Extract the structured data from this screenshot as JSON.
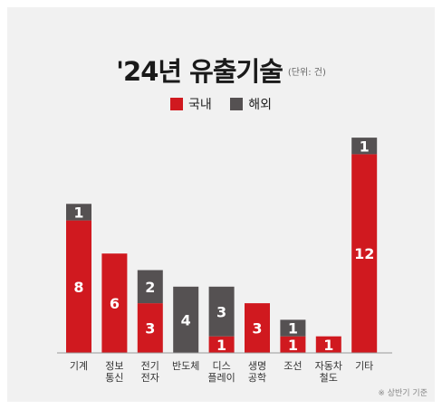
{
  "header": {
    "title": "'24년 유출기술",
    "unit": "(단위: 건)"
  },
  "legend": {
    "domestic_label": "국내",
    "overseas_label": "해외"
  },
  "colors": {
    "domestic": "#d0191f",
    "overseas": "#555152",
    "background": "#f1f1f1"
  },
  "footnote": "※ 상반기 기준",
  "chart_data": {
    "type": "bar",
    "stacked": true,
    "title": "'24년 유출기술",
    "unit": "(단위: 건)",
    "categories": [
      [
        "기계"
      ],
      [
        "정보",
        "통신"
      ],
      [
        "전기",
        "전자"
      ],
      [
        "반도체"
      ],
      [
        "디스",
        "플레이"
      ],
      [
        "생명",
        "공학"
      ],
      [
        "조선"
      ],
      [
        "자동차",
        "철도"
      ],
      [
        "기타"
      ]
    ],
    "series": [
      {
        "name": "국내",
        "values": [
          8,
          6,
          3,
          0,
          1,
          3,
          1,
          1,
          12
        ]
      },
      {
        "name": "해외",
        "values": [
          1,
          0,
          2,
          4,
          3,
          0,
          1,
          0,
          1
        ]
      }
    ],
    "ylim": [
      0,
      13
    ],
    "legend_position": "top-center",
    "grid": false
  }
}
